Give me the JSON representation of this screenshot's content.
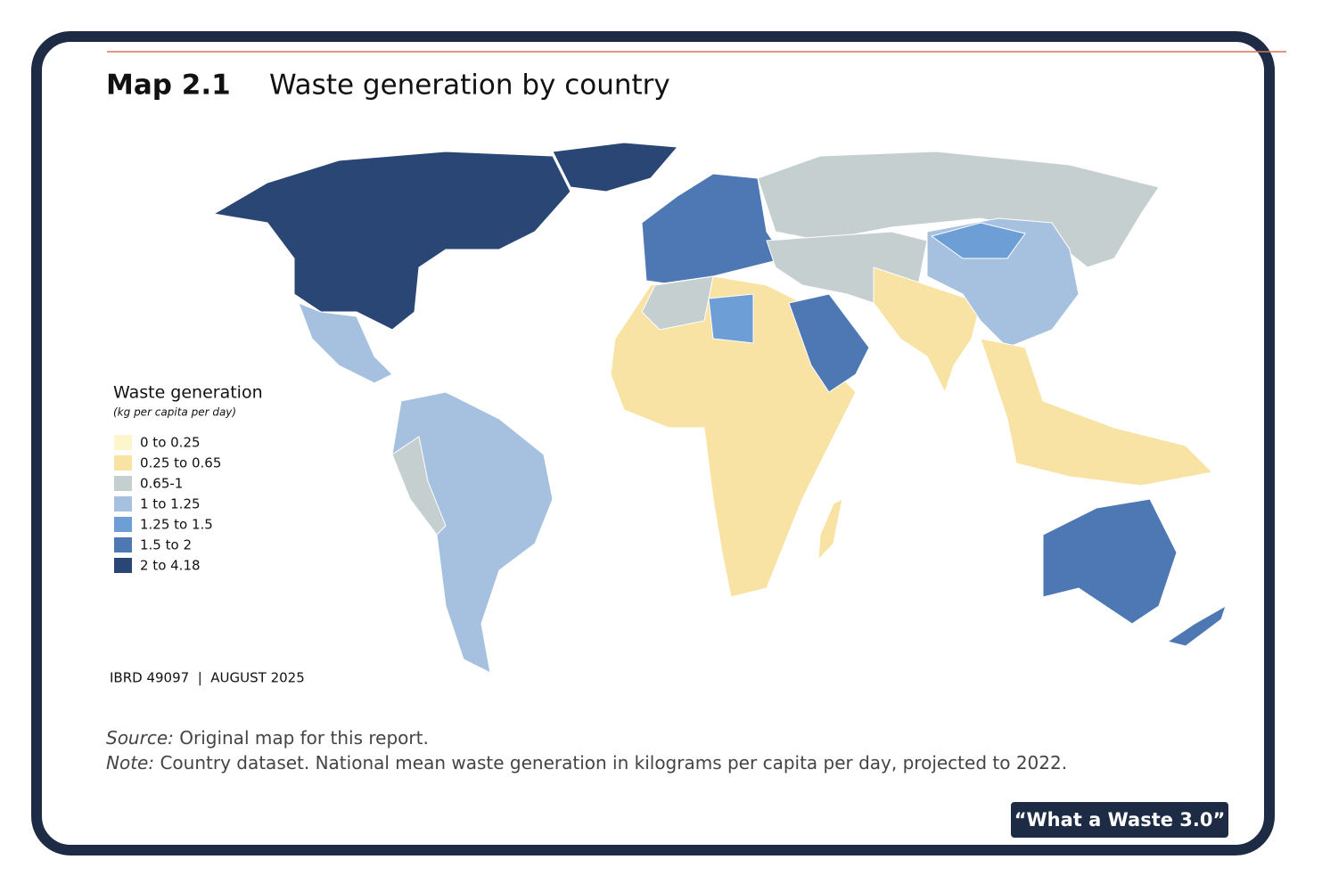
{
  "header": {
    "label": "Map 2.1",
    "title": "Waste generation by country"
  },
  "legend": {
    "title": "Waste generation",
    "subtitle": "(kg per capita per day)",
    "items": [
      {
        "label": "0 to 0.25",
        "color": "#fdf5cc"
      },
      {
        "label": "0.25 to 0.65",
        "color": "#f8e3a4"
      },
      {
        "label": "0.65-1",
        "color": "#c5cfcf"
      },
      {
        "label": "1 to 1.25",
        "color": "#a6c1e0"
      },
      {
        "label": "1.25 to 1.5",
        "color": "#6d9fd6"
      },
      {
        "label": "1.5 to 2",
        "color": "#4d78b3"
      },
      {
        "label": "2 to 4.18",
        "color": "#2a4675"
      }
    ]
  },
  "map_id": "IBRD 49097  |  AUGUST 2025",
  "source": {
    "label": "Source:",
    "text": "Original map for this report."
  },
  "note": {
    "label": "Note:",
    "text": "Country dataset. National mean waste generation in kilograms per capita per day, projected to 2022."
  },
  "badge": "“What a Waste 3.0”"
}
